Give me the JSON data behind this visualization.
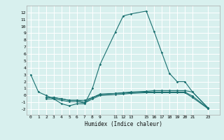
{
  "title": "",
  "xlabel": "Humidex (Indice chaleur)",
  "bg_color": "#d8f0ee",
  "line_color": "#1a7070",
  "grid_color": "#ffffff",
  "xlim": [
    -0.5,
    24.5
  ],
  "ylim": [
    -2.8,
    13.0
  ],
  "xticks": [
    0,
    1,
    2,
    3,
    4,
    5,
    6,
    7,
    8,
    9,
    11,
    12,
    13,
    15,
    16,
    17,
    18,
    19,
    20,
    21,
    23
  ],
  "yticks": [
    -2,
    -1,
    0,
    1,
    2,
    3,
    4,
    5,
    6,
    7,
    8,
    9,
    10,
    11,
    12
  ],
  "lines": [
    {
      "x": [
        0,
        1,
        2,
        3,
        4,
        5,
        6,
        7,
        8,
        9,
        11,
        12,
        13,
        15,
        16,
        17,
        18,
        19,
        20,
        21,
        23
      ],
      "y": [
        3,
        0.5,
        0.0,
        -0.5,
        -1.2,
        -1.5,
        -1.2,
        -1.2,
        1.0,
        4.5,
        9.2,
        11.5,
        11.8,
        12.2,
        9.3,
        6.2,
        3.2,
        2.0,
        2.0,
        0.5,
        -1.8
      ]
    },
    {
      "x": [
        2,
        3,
        4,
        5,
        6,
        7,
        8,
        9,
        11,
        12,
        13,
        15,
        16,
        17,
        18,
        19,
        20,
        21,
        23
      ],
      "y": [
        -0.3,
        -0.3,
        -0.5,
        -0.7,
        -0.7,
        -0.7,
        -0.3,
        0.1,
        0.3,
        0.4,
        0.5,
        0.6,
        0.7,
        0.7,
        0.7,
        0.7,
        0.7,
        0.5,
        -1.8
      ]
    },
    {
      "x": [
        2,
        3,
        4,
        5,
        6,
        7,
        8,
        9,
        11,
        12,
        13,
        15,
        16,
        17,
        18,
        19,
        20,
        21,
        23
      ],
      "y": [
        -0.5,
        -0.5,
        -0.7,
        -0.9,
        -0.9,
        -1.1,
        -0.5,
        0.0,
        0.1,
        0.2,
        0.3,
        0.4,
        0.4,
        0.4,
        0.4,
        0.4,
        0.4,
        -0.3,
        -1.9
      ]
    },
    {
      "x": [
        2,
        3,
        4,
        5,
        6,
        7,
        8,
        9,
        11,
        12,
        13,
        15,
        16,
        17,
        18,
        19,
        20,
        21,
        23
      ],
      "y": [
        -0.3,
        -0.3,
        -0.5,
        -0.7,
        -0.7,
        -1.0,
        -0.3,
        0.2,
        0.3,
        0.35,
        0.4,
        0.5,
        0.5,
        0.5,
        0.5,
        0.5,
        0.5,
        -0.1,
        -1.85
      ]
    }
  ]
}
